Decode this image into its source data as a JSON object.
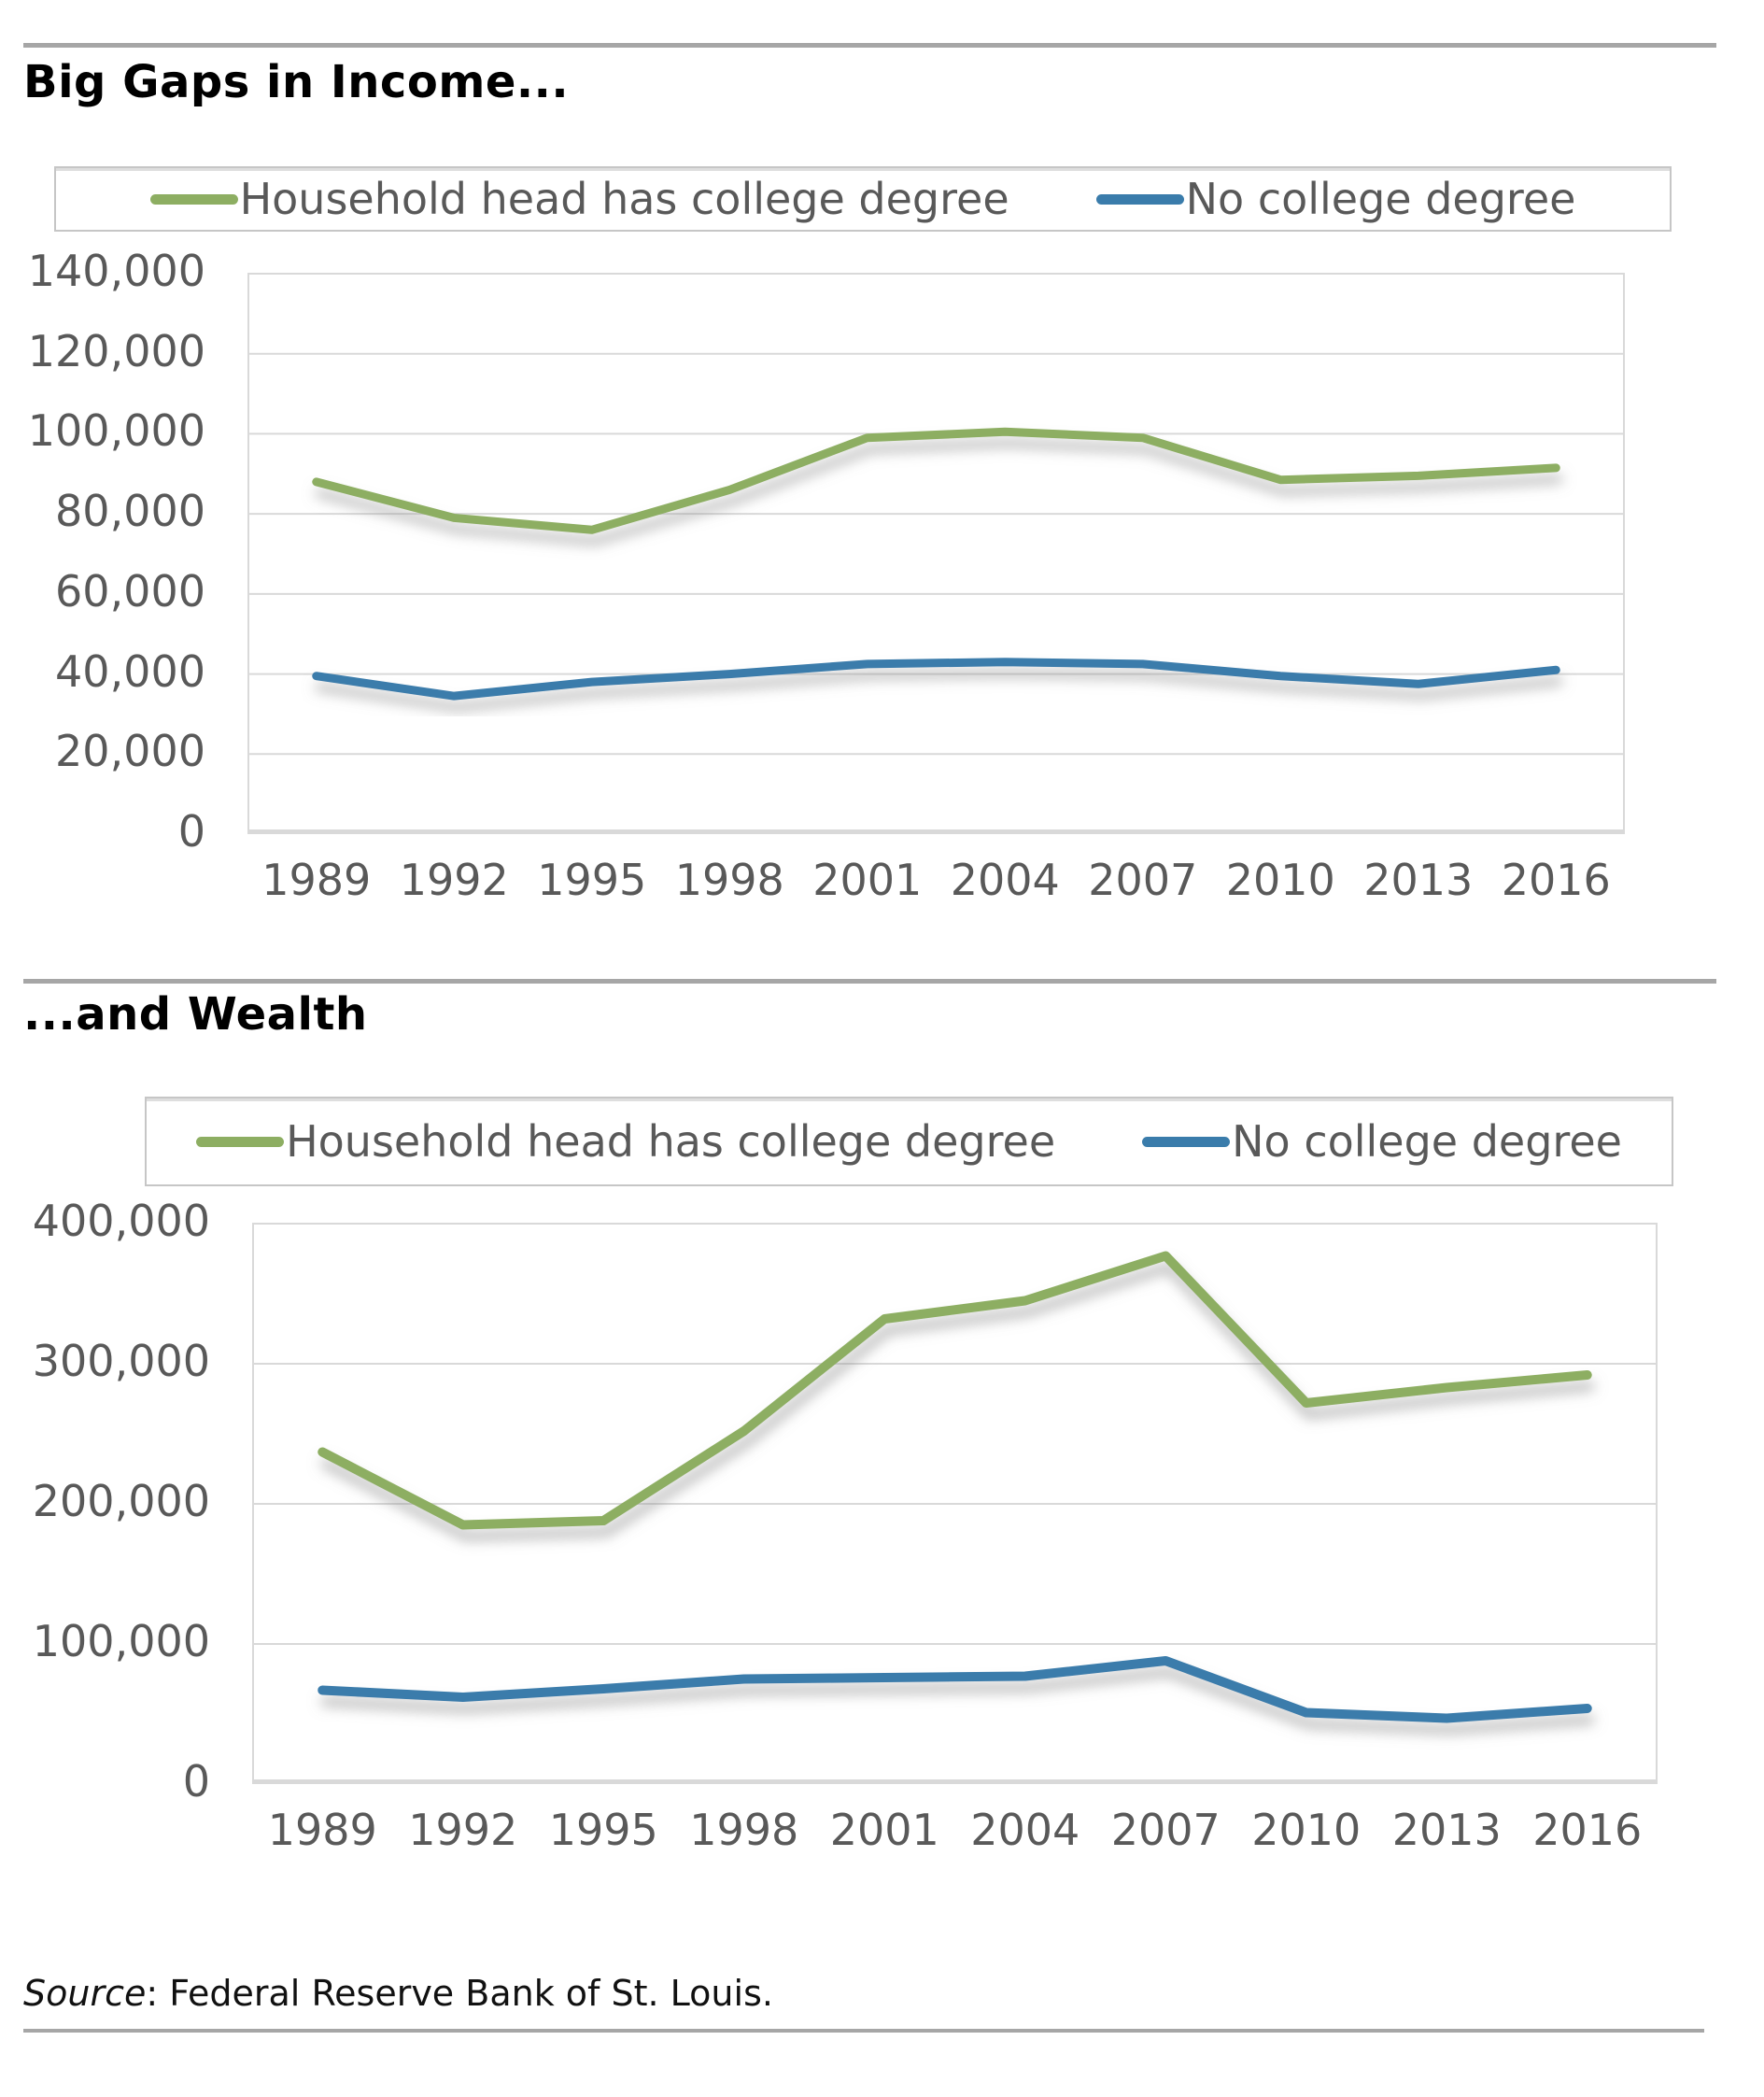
{
  "page": {
    "title_income": "Big Gaps in Income...",
    "title_wealth": "...and Wealth",
    "source_label": "Source",
    "source_rest": ": Federal Reserve Bank of St. Louis."
  },
  "colors": {
    "college_green": "#8dae62",
    "no_college_blue": "#3a7cab",
    "axis_text": "#595959",
    "gridline": "#d9d9d9",
    "rule_gray": "#a6a6a6"
  },
  "chart_data": [
    {
      "type": "line",
      "title": "Big Gaps in Income...",
      "categories": [
        "1989",
        "1992",
        "1995",
        "1998",
        "2001",
        "2004",
        "2007",
        "2010",
        "2013",
        "2016"
      ],
      "series": [
        {
          "name": "Household head has college degree",
          "color": "#8dae62",
          "values": [
            88000,
            79000,
            76000,
            86000,
            99000,
            100500,
            99000,
            88500,
            89500,
            91500
          ]
        },
        {
          "name": "No college degree",
          "color": "#3a7cab",
          "values": [
            39500,
            34500,
            38000,
            40000,
            42500,
            43000,
            42500,
            39500,
            37500,
            41000
          ]
        }
      ],
      "xlabel": "",
      "ylabel": "",
      "ylim": [
        0,
        140000
      ],
      "grid": true,
      "legend_position": "top",
      "yticks": [
        {
          "value": 140000,
          "label": "140,000"
        },
        {
          "value": 120000,
          "label": "120,000"
        },
        {
          "value": 100000,
          "label": "100,000"
        },
        {
          "value": 80000,
          "label": "80,000"
        },
        {
          "value": 60000,
          "label": "60,000"
        },
        {
          "value": 40000,
          "label": "40,000"
        },
        {
          "value": 20000,
          "label": "20,000"
        },
        {
          "value": 0,
          "label": "0"
        }
      ]
    },
    {
      "type": "line",
      "title": "...and Wealth",
      "categories": [
        "1989",
        "1992",
        "1995",
        "1998",
        "2001",
        "2004",
        "2007",
        "2010",
        "2013",
        "2016"
      ],
      "series": [
        {
          "name": "Household head has college degree",
          "color": "#8dae62",
          "values": [
            237000,
            185000,
            188000,
            252000,
            332000,
            345000,
            377000,
            272000,
            283000,
            292000
          ]
        },
        {
          "name": "No college degree",
          "color": "#3a7cab",
          "values": [
            67000,
            62000,
            68000,
            75000,
            76000,
            77000,
            88000,
            51000,
            47000,
            54000
          ]
        }
      ],
      "xlabel": "",
      "ylabel": "",
      "ylim": [
        0,
        400000
      ],
      "grid": true,
      "legend_position": "top",
      "yticks": [
        {
          "value": 400000,
          "label": "400,000"
        },
        {
          "value": 300000,
          "label": "300,000"
        },
        {
          "value": 200000,
          "label": "200,000"
        },
        {
          "value": 100000,
          "label": "100,000"
        },
        {
          "value": 0,
          "label": "0"
        }
      ]
    }
  ]
}
